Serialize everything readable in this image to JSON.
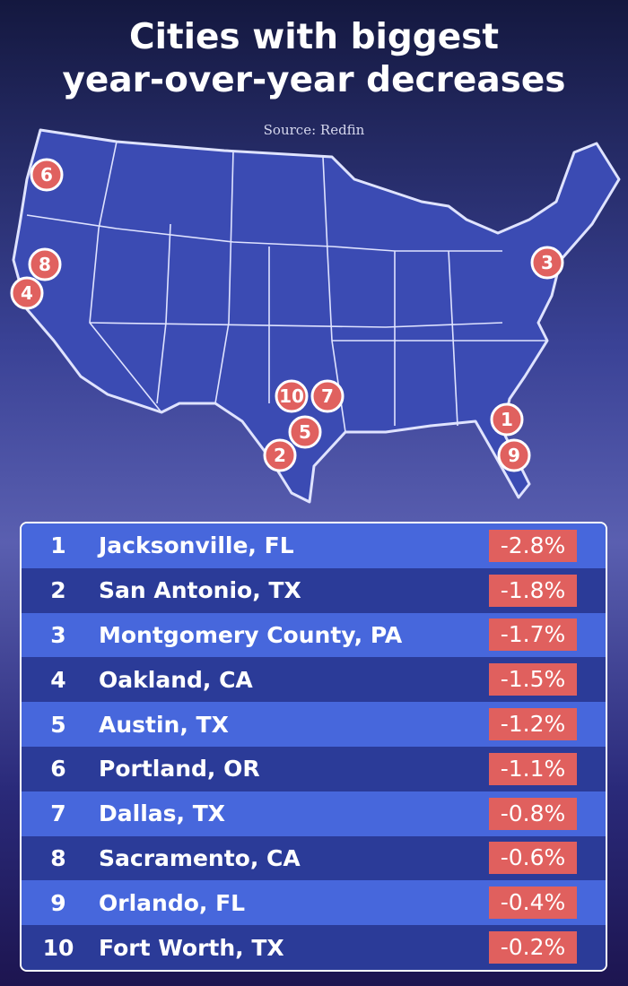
{
  "title_lines": [
    "Cities with biggest",
    "year-over-year decreases"
  ],
  "source": "Source: Redfin",
  "map_markers": [
    "6",
    "8",
    "4",
    "3",
    "1",
    "9",
    "10",
    "7",
    "5",
    "2"
  ],
  "table": {
    "rows": [
      [
        "1",
        "Jacksonville, FL",
        "-2.8%"
      ],
      [
        "2",
        "San Antonio, TX",
        "-1.8%"
      ],
      [
        "3",
        "Montgomery County, PA",
        "-1.7%"
      ],
      [
        "4",
        "Oakland, CA",
        "-1.5%"
      ],
      [
        "5",
        "Austin, TX",
        "-1.2%"
      ],
      [
        "6",
        "Portland, OR",
        "-1.1%"
      ],
      [
        "7",
        "Dallas, TX",
        "-0.8%"
      ],
      [
        "8",
        "Sacramento, CA",
        "-0.6%"
      ],
      [
        "9",
        "Orlando, FL",
        "-0.4%"
      ],
      [
        "10",
        "Fort Worth, TX",
        "-0.2%"
      ]
    ]
  }
}
